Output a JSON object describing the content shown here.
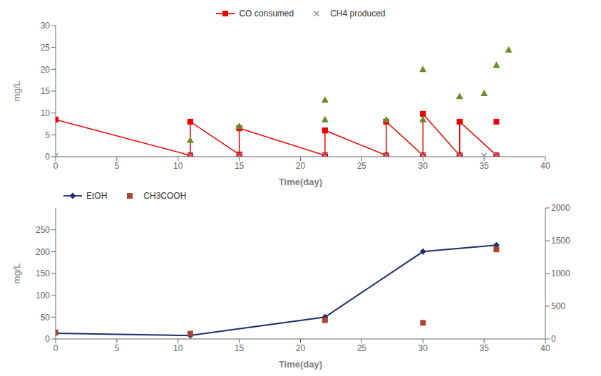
{
  "chart_data": [
    {
      "type": "scatter",
      "x_label": "Time(day)",
      "y_label": "mg/L",
      "xlim": [
        0,
        40
      ],
      "xticks": [
        0,
        5,
        10,
        15,
        20,
        25,
        30,
        35,
        40
      ],
      "ylim": [
        0,
        30
      ],
      "yticks": [
        0,
        5,
        10,
        15,
        20,
        25,
        30
      ],
      "grid": false,
      "legend": "upper center",
      "series": [
        {
          "name": "CO consumed",
          "type": "line",
          "color": "#EE0000",
          "marker": "square",
          "x": [
            0,
            11,
            11,
            15,
            15,
            22,
            22,
            27,
            27,
            30,
            30,
            33,
            33,
            36
          ],
          "values": [
            8.5,
            0.3,
            8.0,
            0.5,
            6.5,
            0.3,
            6.0,
            0.3,
            8.0,
            0.3,
            9.8,
            0.3,
            8.0,
            0.3
          ]
        },
        {
          "type": "scatter",
          "color": "#EE0000",
          "marker": "square",
          "x": [
            0,
            11,
            15,
            22,
            27,
            30,
            33,
            36
          ],
          "values": [
            8.5,
            8.0,
            6.5,
            6.0,
            8.0,
            9.8,
            8.0,
            8.0
          ]
        },
        {
          "type": "scatter",
          "color": "#EE0000",
          "marker": "square",
          "x": [
            11,
            15,
            22,
            27,
            30,
            33,
            36
          ],
          "values": [
            0.3,
            0.5,
            0.3,
            0.3,
            0.3,
            0.3,
            0.3
          ]
        },
        {
          "type": "scatter",
          "color": "#6B8B23",
          "marker": "triangle",
          "x": [
            11,
            15,
            22,
            22,
            27,
            30,
            30,
            33,
            35,
            36,
            37
          ],
          "values": [
            3.8,
            7.0,
            8.5,
            13.0,
            8.5,
            8.5,
            20.0,
            13.8,
            14.5,
            21.0,
            24.5
          ]
        },
        {
          "name": "CH4 produced",
          "type": "scatter",
          "color": "#9090AA",
          "marker": "x",
          "x": [
            0,
            11,
            15,
            22,
            27,
            30,
            33,
            35,
            36
          ],
          "values": [
            0.3,
            0.3,
            0.3,
            0.3,
            0.3,
            0.3,
            0.3,
            0.3,
            0.3
          ]
        }
      ]
    },
    {
      "type": "scatter",
      "x_label": "Time(day)",
      "y_label": "mg/L",
      "xlim": [
        0,
        40
      ],
      "xticks": [
        0,
        5,
        10,
        15,
        20,
        25,
        30,
        35,
        40
      ],
      "ylim": [
        0,
        300
      ],
      "yticks": [
        0,
        50,
        100,
        150,
        200,
        250
      ],
      "y2lim": [
        0,
        2000
      ],
      "y2ticks": [
        0,
        500,
        1000,
        1500,
        2000
      ],
      "grid": false,
      "legend": "upper left",
      "series": [
        {
          "name": "EtOH",
          "type": "line",
          "color": "#1C2E6B",
          "marker": "diamond",
          "x": [
            0,
            11,
            22,
            30,
            36
          ],
          "values": [
            13,
            8,
            50,
            200,
            215
          ]
        },
        {
          "name": "CH3COOH",
          "type": "scatter",
          "color": "#AA4433",
          "marker": "square",
          "x": [
            0,
            11,
            22,
            30,
            36
          ],
          "values": [
            15,
            12,
            43,
            37,
            205
          ]
        }
      ]
    }
  ]
}
